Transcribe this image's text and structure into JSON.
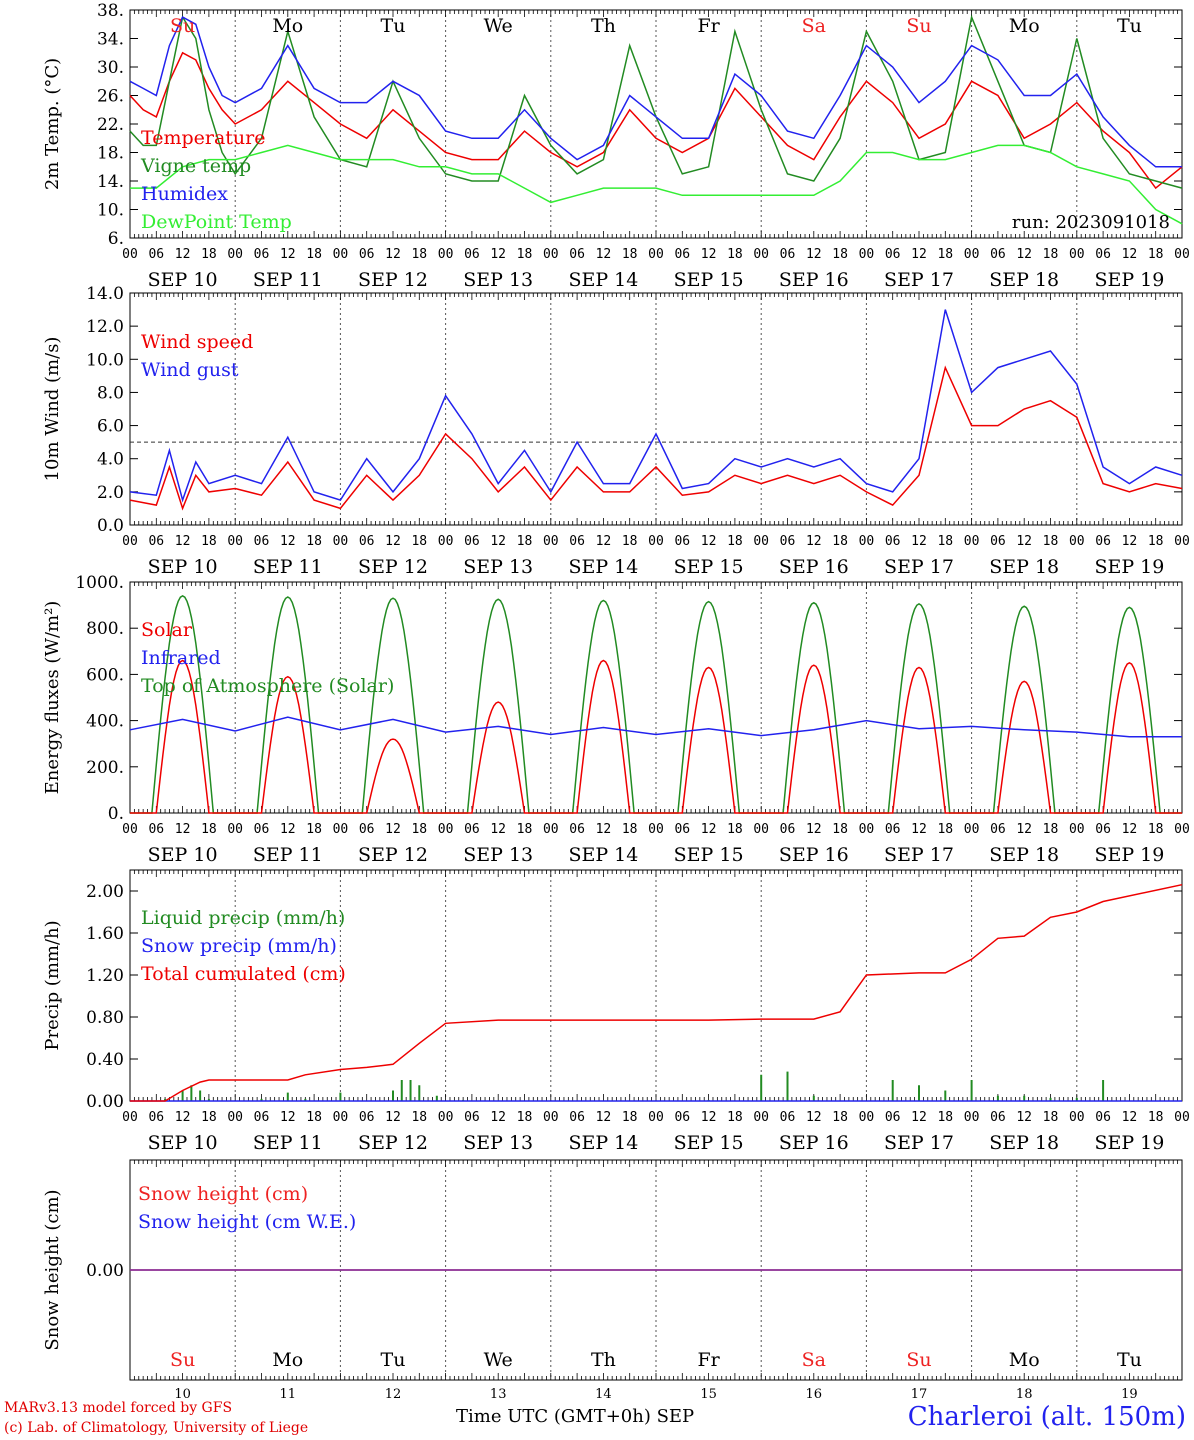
{
  "chart_data": [
    {
      "type": "line",
      "ylabel": "2m Temp. (°C)",
      "yticks": [
        "6.",
        "10.",
        "14.",
        "18.",
        "22.",
        "26.",
        "30.",
        "34.",
        "38."
      ],
      "ylim": [
        6,
        38
      ],
      "run": "run: 2023091018",
      "days_top": [
        {
          "label": "Su",
          "color": "#ee2222"
        },
        {
          "label": "Mo",
          "color": "#000000"
        },
        {
          "label": "Tu",
          "color": "#000000"
        },
        {
          "label": "We",
          "color": "#000000"
        },
        {
          "label": "Th",
          "color": "#000000"
        },
        {
          "label": "Fr",
          "color": "#000000"
        },
        {
          "label": "Sa",
          "color": "#ee2222"
        },
        {
          "label": "Su",
          "color": "#ee2222"
        },
        {
          "label": "Mo",
          "color": "#000000"
        },
        {
          "label": "Tu",
          "color": "#000000"
        }
      ],
      "series": [
        {
          "name": "Temperature",
          "color": "#ee0000",
          "x": [
            0,
            3,
            6,
            9,
            12,
            15,
            18,
            21,
            24,
            30,
            36,
            42,
            48,
            54,
            60,
            66,
            72,
            78,
            84,
            90,
            96,
            102,
            108,
            114,
            120,
            126,
            132,
            138,
            144,
            150,
            156,
            162,
            168,
            174,
            180,
            186,
            192,
            198,
            204,
            210,
            216,
            222,
            228,
            234,
            240
          ],
          "values": [
            26,
            24,
            23,
            28,
            32,
            31,
            27,
            24,
            22,
            24,
            28,
            25,
            22,
            20,
            24,
            21,
            18,
            17,
            17,
            21,
            18,
            16,
            18,
            24,
            20,
            18,
            20,
            27,
            23,
            19,
            17,
            23,
            28,
            25,
            20,
            22,
            28,
            26,
            20,
            22,
            25,
            21,
            18,
            13,
            16
          ]
        },
        {
          "name": "Vigne temp",
          "color": "#228b22",
          "x": [
            0,
            3,
            6,
            9,
            12,
            15,
            18,
            21,
            24,
            30,
            36,
            42,
            48,
            54,
            60,
            66,
            72,
            78,
            84,
            90,
            96,
            102,
            108,
            114,
            120,
            126,
            132,
            138,
            144,
            150,
            156,
            162,
            168,
            174,
            180,
            186,
            192,
            198,
            204,
            210,
            216,
            222,
            228,
            234,
            240
          ],
          "values": [
            21,
            19,
            19,
            28,
            37,
            34,
            24,
            18,
            15,
            20,
            35,
            23,
            17,
            16,
            28,
            20,
            15,
            14,
            14,
            26,
            19,
            15,
            17,
            33,
            23,
            15,
            16,
            35,
            24,
            15,
            14,
            20,
            35,
            28,
            17,
            18,
            37,
            28,
            19,
            18,
            34,
            20,
            15,
            14,
            13
          ]
        },
        {
          "name": "Humidex",
          "color": "#2222ee",
          "x": [
            0,
            3,
            6,
            9,
            12,
            15,
            18,
            21,
            24,
            30,
            36,
            42,
            48,
            54,
            60,
            66,
            72,
            78,
            84,
            90,
            96,
            102,
            108,
            114,
            120,
            126,
            132,
            138,
            144,
            150,
            156,
            162,
            168,
            174,
            180,
            186,
            192,
            198,
            204,
            210,
            216,
            222,
            228,
            234,
            240
          ],
          "values": [
            28,
            27,
            26,
            33,
            37,
            36,
            30,
            26,
            25,
            27,
            33,
            27,
            25,
            25,
            28,
            26,
            21,
            20,
            20,
            24,
            20,
            17,
            19,
            26,
            23,
            20,
            20,
            29,
            26,
            21,
            20,
            26,
            33,
            30,
            25,
            28,
            33,
            31,
            26,
            26,
            29,
            23,
            19,
            16,
            16
          ]
        },
        {
          "name": "DewPoint Temp",
          "color": "#33ee33",
          "x": [
            0,
            6,
            12,
            18,
            24,
            30,
            36,
            42,
            48,
            54,
            60,
            66,
            72,
            78,
            84,
            90,
            96,
            102,
            108,
            114,
            120,
            126,
            132,
            138,
            144,
            150,
            156,
            162,
            168,
            174,
            180,
            186,
            192,
            198,
            204,
            210,
            216,
            222,
            228,
            234,
            240
          ],
          "values": [
            13,
            13,
            16,
            17,
            17,
            18,
            19,
            18,
            17,
            17,
            17,
            16,
            16,
            15,
            15,
            13,
            11,
            12,
            13,
            13,
            13,
            12,
            12,
            12,
            12,
            12,
            12,
            14,
            18,
            18,
            17,
            17,
            18,
            19,
            19,
            18,
            16,
            15,
            14,
            10,
            8
          ]
        }
      ]
    },
    {
      "type": "line",
      "ylabel": "10m Wind (m/s)",
      "yticks": [
        "0.0",
        "2.0",
        "4.0",
        "6.0",
        "8.0",
        "10.0",
        "12.0",
        "14.0"
      ],
      "ylim": [
        0,
        14
      ],
      "reference_line": 5,
      "series": [
        {
          "name": "Wind speed",
          "color": "#ee0000",
          "x": [
            0,
            6,
            9,
            12,
            15,
            18,
            24,
            30,
            36,
            42,
            48,
            54,
            60,
            66,
            72,
            78,
            84,
            90,
            96,
            102,
            108,
            114,
            120,
            126,
            132,
            138,
            144,
            150,
            156,
            162,
            168,
            174,
            180,
            186,
            192,
            198,
            204,
            210,
            216,
            222,
            228,
            234,
            240
          ],
          "values": [
            1.5,
            1.2,
            3.5,
            1.0,
            3.0,
            2.0,
            2.2,
            1.8,
            3.8,
            1.5,
            1.0,
            3.0,
            1.5,
            3.0,
            5.5,
            4.0,
            2.0,
            3.5,
            1.5,
            3.5,
            2.0,
            2.0,
            3.5,
            1.8,
            2.0,
            3.0,
            2.5,
            3.0,
            2.5,
            3.0,
            2.0,
            1.2,
            3.0,
            9.5,
            6.0,
            6.0,
            7.0,
            7.5,
            6.5,
            2.5,
            2.0,
            2.5,
            2.2
          ]
        },
        {
          "name": "Wind gust",
          "color": "#2222ee",
          "x": [
            0,
            6,
            9,
            12,
            15,
            18,
            24,
            30,
            36,
            42,
            48,
            54,
            60,
            66,
            72,
            78,
            84,
            90,
            96,
            102,
            108,
            114,
            120,
            126,
            132,
            138,
            144,
            150,
            156,
            162,
            168,
            174,
            180,
            186,
            192,
            198,
            204,
            210,
            216,
            222,
            228,
            234,
            240
          ],
          "values": [
            2.0,
            1.8,
            4.5,
            1.5,
            3.8,
            2.5,
            3.0,
            2.5,
            5.3,
            2.0,
            1.5,
            4.0,
            2.0,
            4.0,
            7.8,
            5.5,
            2.5,
            4.5,
            2.0,
            5.0,
            2.5,
            2.5,
            5.5,
            2.2,
            2.5,
            4.0,
            3.5,
            4.0,
            3.5,
            4.0,
            2.5,
            2.0,
            4.0,
            13.0,
            8.0,
            9.5,
            10.0,
            10.5,
            8.5,
            3.5,
            2.5,
            3.5,
            3.0
          ]
        }
      ]
    },
    {
      "type": "line",
      "ylabel": "Energy fluxes (W/m²)",
      "yticks": [
        "0.",
        "200.",
        "400.",
        "600.",
        "800.",
        "1000."
      ],
      "ylim": [
        0,
        1000
      ],
      "series": [
        {
          "name": "Solar",
          "color": "#ee0000",
          "daily_peaks": [
            660,
            590,
            320,
            480,
            660,
            630,
            640,
            630,
            570,
            650
          ]
        },
        {
          "name": "Infrared",
          "color": "#2222ee",
          "x": [
            0,
            12,
            24,
            36,
            48,
            60,
            72,
            84,
            96,
            108,
            120,
            132,
            144,
            156,
            168,
            180,
            192,
            204,
            216,
            228,
            240
          ],
          "values": [
            360,
            405,
            355,
            415,
            360,
            405,
            350,
            375,
            340,
            370,
            340,
            365,
            335,
            360,
            400,
            365,
            375,
            360,
            350,
            330,
            330
          ]
        },
        {
          "name": "Top of Atmosphere (Solar)",
          "color": "#228b22",
          "daily_peaks": [
            940,
            935,
            930,
            925,
            920,
            915,
            910,
            905,
            895,
            890
          ]
        }
      ]
    },
    {
      "type": "area",
      "ylabel": "Precip (mm/h)",
      "yticks": [
        "0.00",
        "0.40",
        "0.80",
        "1.20",
        "1.60",
        "2.00"
      ],
      "ylim": [
        0,
        2.2
      ],
      "series": [
        {
          "name": "Liquid precip (mm/h)",
          "color": "#228b22",
          "x": [
            8,
            12,
            14,
            16,
            18,
            30,
            36,
            40,
            48,
            60,
            62,
            64,
            66,
            70,
            76,
            132,
            144,
            150,
            156,
            174,
            180,
            186,
            192,
            198,
            204,
            210,
            216,
            222
          ],
          "values": [
            0.02,
            0.1,
            0.15,
            0.1,
            0.02,
            0.02,
            0.08,
            0.02,
            0.08,
            0.1,
            0.2,
            0.2,
            0.15,
            0.05,
            0.01,
            0.01,
            0.25,
            0.28,
            0.05,
            0.2,
            0.15,
            0.1,
            0.2,
            0.05,
            0.05,
            0.03,
            0.03,
            0.2
          ]
        },
        {
          "name": "Snow precip (mm/h)",
          "color": "#2222ee",
          "x": [
            0,
            240
          ],
          "values": [
            0,
            0
          ]
        },
        {
          "name": "Total cumulated (cm)",
          "color": "#ee0000",
          "x": [
            0,
            8,
            12,
            16,
            18,
            36,
            40,
            48,
            54,
            60,
            66,
            72,
            84,
            96,
            132,
            144,
            156,
            162,
            168,
            180,
            186,
            192,
            198,
            204,
            210,
            216,
            222,
            240
          ],
          "values": [
            0,
            0,
            0.1,
            0.18,
            0.2,
            0.2,
            0.25,
            0.3,
            0.32,
            0.35,
            0.55,
            0.74,
            0.77,
            0.77,
            0.77,
            0.78,
            0.78,
            0.85,
            1.2,
            1.22,
            1.22,
            1.35,
            1.55,
            1.57,
            1.75,
            1.8,
            1.9,
            2.06
          ]
        }
      ]
    },
    {
      "type": "line",
      "ylabel": "Snow height (cm)",
      "yticks": [
        "0.00"
      ],
      "series": [
        {
          "name": "Snow height (cm)",
          "color": "#ee2222",
          "x": [
            0,
            240
          ],
          "values": [
            0,
            0
          ]
        },
        {
          "name": "Snow height (cm W.E.)",
          "color": "#2222ee",
          "x": [
            0,
            240
          ],
          "values": [
            0,
            0
          ]
        }
      ],
      "days_bottom": [
        {
          "label": "Su",
          "color": "#ee2222"
        },
        {
          "label": "Mo",
          "color": "#000000"
        },
        {
          "label": "Tu",
          "color": "#000000"
        },
        {
          "label": "We",
          "color": "#000000"
        },
        {
          "label": "Th",
          "color": "#000000"
        },
        {
          "label": "Fr",
          "color": "#000000"
        },
        {
          "label": "Sa",
          "color": "#ee2222"
        },
        {
          "label": "Su",
          "color": "#ee2222"
        },
        {
          "label": "Mo",
          "color": "#000000"
        },
        {
          "label": "Tu",
          "color": "#000000"
        }
      ],
      "day_numbers": [
        "10",
        "11",
        "12",
        "13",
        "14",
        "15",
        "16",
        "17",
        "18",
        "19"
      ]
    }
  ],
  "hour_ticks": [
    "00",
    "06",
    "12",
    "18"
  ],
  "date_labels": [
    "SEP 10",
    "SEP 11",
    "SEP 12",
    "SEP 13",
    "SEP 14",
    "SEP 15",
    "SEP 16",
    "SEP 17",
    "SEP 18",
    "SEP 19"
  ],
  "final_tick": "00",
  "footer": {
    "credit_line1": "MARv3.13 model forced by GFS",
    "credit_line2": "(c) Lab. of Climatology, University of Liege",
    "x_axis_title": "Time UTC (GMT+0h) SEP",
    "station": "Charleroi (alt. 150m)"
  }
}
